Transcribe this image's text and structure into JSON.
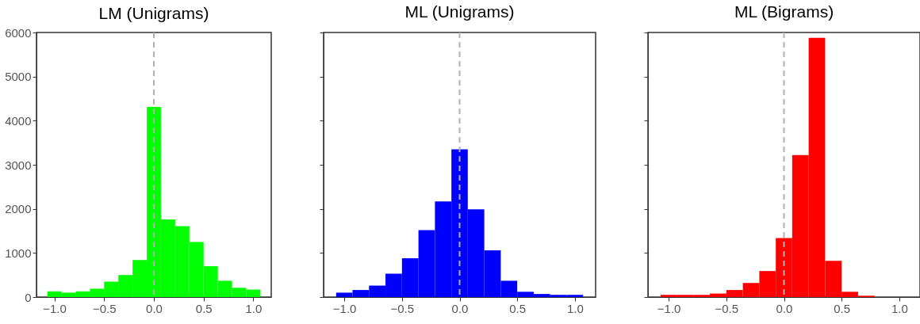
{
  "chart_data": [
    {
      "type": "histogram",
      "title": "LM (Unigrams)",
      "color": "#00ff00",
      "bins": [
        -1.071,
        -0.929,
        -0.786,
        -0.643,
        -0.5,
        -0.357,
        -0.214,
        -0.071,
        0.071,
        0.214,
        0.357,
        0.5,
        0.643,
        0.786,
        0.929,
        1.071
      ],
      "values": [
        130,
        100,
        130,
        190,
        350,
        500,
        840,
        4310,
        1760,
        1610,
        1250,
        700,
        370,
        210,
        170
      ],
      "xlim": [
        -1.18,
        1.18
      ],
      "xticks": [
        {
          "value": -1,
          "label": "−1.0"
        },
        {
          "value": -0.5,
          "label": "−0.5"
        },
        {
          "value": 0,
          "label": "0.0"
        },
        {
          "value": 0.5,
          "label": "0.5"
        },
        {
          "value": 1,
          "label": "1.0"
        }
      ],
      "ylim": [
        0,
        6000
      ],
      "yticks": [
        0,
        1000,
        2000,
        3000,
        4000,
        5000,
        6000
      ],
      "ref_lines": [
        {
          "axis": "x",
          "value": 0,
          "color": "#b0b0b0",
          "line_style": "dashed"
        }
      ]
    },
    {
      "type": "histogram",
      "title": "ML (Unigrams)",
      "color": "#0000ff",
      "bins": [
        -1.071,
        -0.929,
        -0.786,
        -0.643,
        -0.5,
        -0.357,
        -0.214,
        -0.071,
        0.071,
        0.214,
        0.357,
        0.5,
        0.643,
        0.786,
        0.929,
        1.071
      ],
      "values": [
        100,
        160,
        260,
        530,
        880,
        1520,
        2170,
        3350,
        1990,
        1060,
        370,
        120,
        70,
        50,
        50
      ],
      "xlim": [
        -1.18,
        1.18
      ],
      "xticks": [
        {
          "value": -1,
          "label": "−1.0"
        },
        {
          "value": -0.5,
          "label": "−0.5"
        },
        {
          "value": 0,
          "label": "0.0"
        },
        {
          "value": 0.5,
          "label": "0.5"
        },
        {
          "value": 1,
          "label": "1.0"
        }
      ],
      "ylim": [
        0,
        6000
      ],
      "yticks": [
        0,
        1000,
        2000,
        3000,
        4000,
        5000,
        6000
      ],
      "tick_labels": "x",
      "ref_lines": [
        {
          "axis": "x",
          "value": 0,
          "color": "#b0b0b0",
          "line_style": "dashed"
        }
      ]
    },
    {
      "type": "histogram",
      "title": "ML (Bigrams)",
      "color": "#ff0000",
      "bins": [
        -1.071,
        -0.929,
        -0.786,
        -0.643,
        -0.5,
        -0.357,
        -0.214,
        -0.071,
        0.071,
        0.214,
        0.357,
        0.5,
        0.643,
        0.786,
        0.929,
        1.071
      ],
      "values": [
        50,
        50,
        50,
        80,
        160,
        320,
        590,
        1340,
        3220,
        5880,
        820,
        120,
        30,
        0,
        0
      ],
      "xlim": [
        -1.18,
        1.18
      ],
      "xticks": [
        {
          "value": -1,
          "label": "−1.0"
        },
        {
          "value": -0.5,
          "label": "−0.5"
        },
        {
          "value": 0,
          "label": "0.0"
        },
        {
          "value": 0.5,
          "label": "0.5"
        },
        {
          "value": 1,
          "label": "1.0"
        }
      ],
      "ylim": [
        0,
        6000
      ],
      "yticks": [
        0,
        1000,
        2000,
        3000,
        4000,
        5000,
        6000
      ],
      "tick_labels": "x",
      "ref_lines": [
        {
          "axis": "x",
          "value": 0,
          "color": "#b0b0b0",
          "line_style": "dashed"
        }
      ]
    }
  ]
}
